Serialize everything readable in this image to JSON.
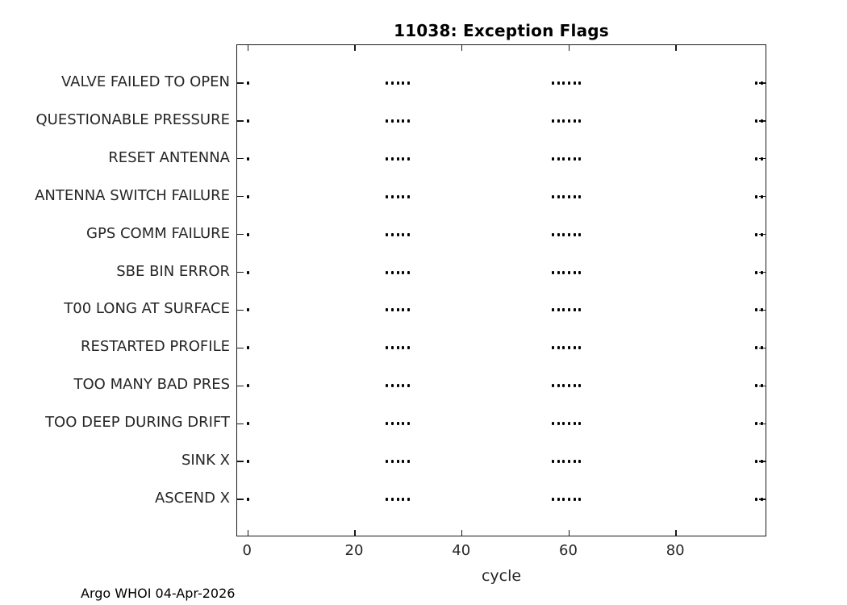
{
  "title": "11038: Exception Flags",
  "footer": {
    "text": "Argo WHOI 04-Apr-2026"
  },
  "colors": {
    "background": "#ffffff",
    "axis_line": "#1a1a1a",
    "tick_label": "#262626",
    "title_text": "#000000",
    "marker": "#000000"
  },
  "chart_data": {
    "type": "scatter",
    "title": "11038: Exception Flags",
    "xlabel": "cycle",
    "ylabel": "",
    "x_ticks": [
      0,
      20,
      40,
      60,
      80
    ],
    "xlim": [
      -2,
      97
    ],
    "grid": false,
    "box": true,
    "tick_direction": "in",
    "marker": ".",
    "marker_color": "#000000",
    "categories": [
      "VALVE FAILED TO OPEN",
      "QUESTIONABLE PRESSURE",
      "RESET ANTENNA",
      "ANTENNA SWITCH FAILURE",
      "GPS COMM FAILURE",
      "SBE BIN ERROR",
      "T00 LONG AT SURFACE",
      "RESTARTED PROFILE",
      "TOO MANY BAD PRES",
      "TOO DEEP DURING DRIFT",
      "SINK X",
      "ASCEND X"
    ],
    "marker_cycles": [
      0,
      26,
      27,
      28,
      29,
      30,
      57,
      58,
      59,
      60,
      61,
      62,
      95,
      96
    ],
    "note": "Every category row shows markers at the same cycle values"
  }
}
